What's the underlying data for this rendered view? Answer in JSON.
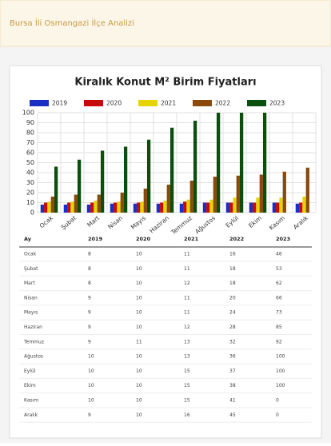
{
  "header": {
    "title": "Bursa İli Osmangazi İlçe Analizi"
  },
  "chart_data": {
    "type": "bar",
    "title": "Kiralık Konut M² Birim Fiyatları",
    "categories": [
      "Ocak",
      "Şubat",
      "Mart",
      "Nisan",
      "Mayıs",
      "Haziran",
      "Temmuz",
      "Ağustos",
      "Eylül",
      "Ekim",
      "Kasım",
      "Aralık"
    ],
    "series": [
      {
        "name": "2019",
        "color": "#1a2fc4",
        "values": [
          8,
          8,
          8,
          9,
          9,
          9,
          9,
          10,
          10,
          10,
          10,
          9
        ]
      },
      {
        "name": "2020",
        "color": "#c80a0a",
        "values": [
          10,
          10,
          10,
          10,
          10,
          10,
          11,
          10,
          10,
          10,
          10,
          10
        ]
      },
      {
        "name": "2021",
        "color": "#e6d400",
        "values": [
          11,
          11,
          12,
          11,
          11,
          12,
          13,
          13,
          15,
          15,
          15,
          16
        ]
      },
      {
        "name": "2022",
        "color": "#8b4a0c",
        "values": [
          16,
          18,
          18,
          20,
          24,
          28,
          32,
          36,
          37,
          38,
          41,
          45
        ]
      },
      {
        "name": "2023",
        "color": "#0b4f0f",
        "values": [
          46,
          53,
          62,
          66,
          73,
          85,
          92,
          100,
          100,
          100,
          0,
          0
        ]
      }
    ],
    "ylim": [
      0,
      100
    ],
    "yticks": [
      0,
      10,
      20,
      30,
      40,
      50,
      60,
      70,
      80,
      90,
      100
    ],
    "grid": true,
    "legend": "top"
  },
  "table": {
    "month_header": "Ay"
  }
}
